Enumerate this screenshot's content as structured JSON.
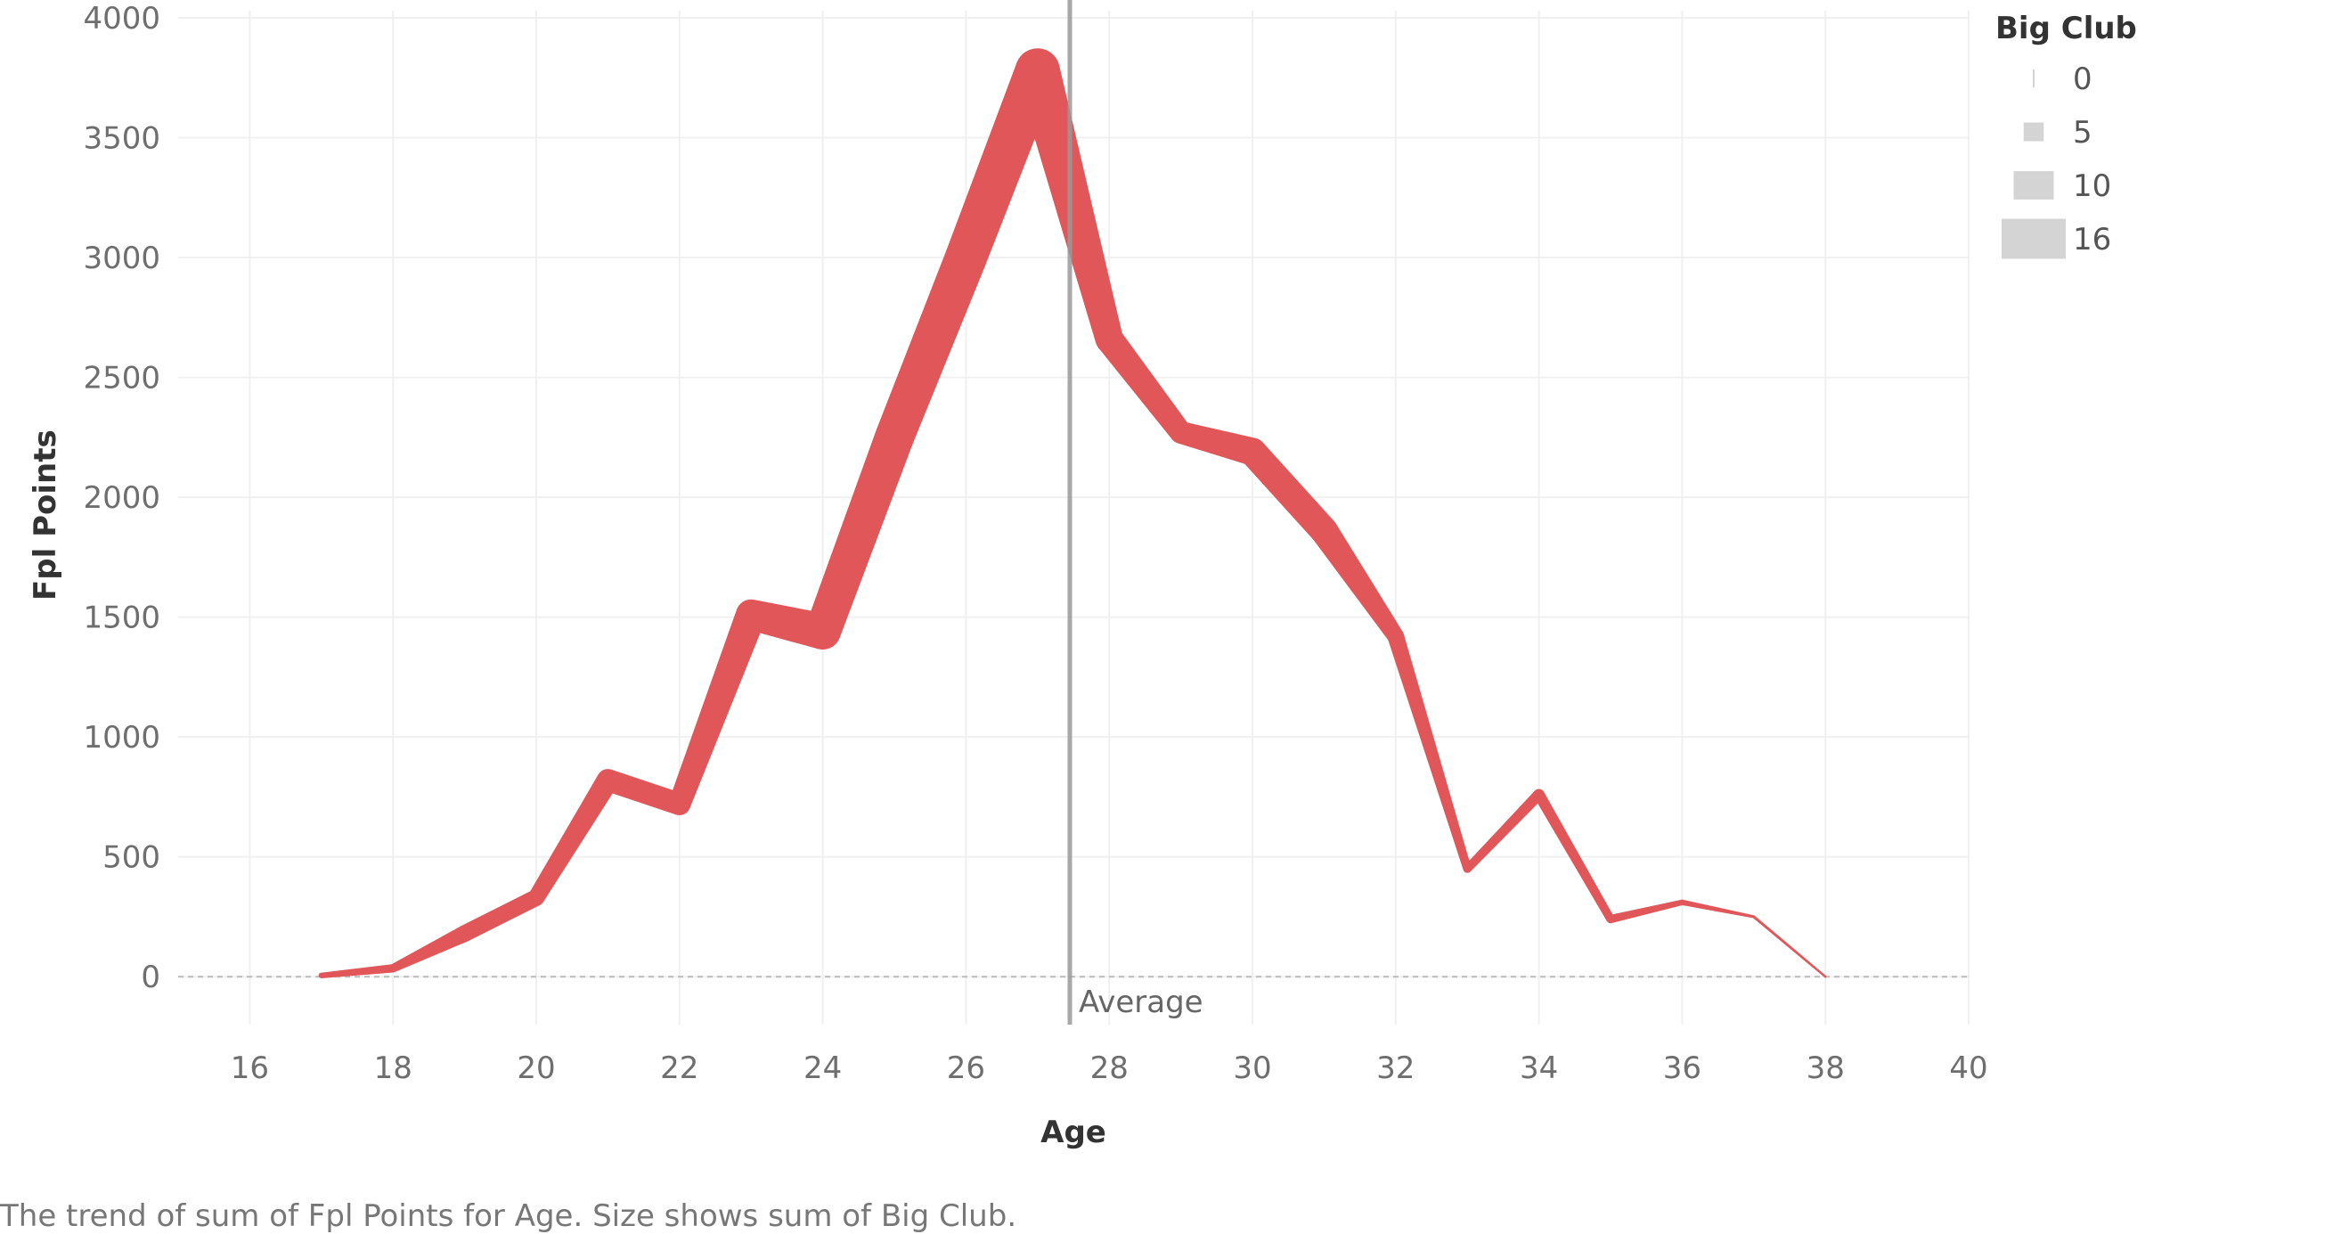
{
  "chart_data": {
    "type": "line",
    "xlabel": "Age",
    "ylabel": "Fpl Points",
    "xlim": [
      15,
      40
    ],
    "ylim": [
      -200,
      4000
    ],
    "xticks": [
      16,
      18,
      20,
      22,
      24,
      26,
      28,
      30,
      32,
      34,
      36,
      38,
      40
    ],
    "yticks": [
      0,
      500,
      1000,
      1500,
      2000,
      2500,
      3000,
      3500,
      4000
    ],
    "grid": true,
    "series": [
      {
        "x": [
          17,
          18,
          19,
          20,
          21,
          22,
          23,
          24,
          25,
          26,
          27,
          28,
          29,
          30,
          31,
          32,
          33,
          34,
          35,
          36,
          37,
          38
        ],
        "y": [
          5,
          35,
          180,
          330,
          820,
          720,
          1510,
          1440,
          2250,
          3000,
          3780,
          2660,
          2270,
          2190,
          1860,
          1420,
          450,
          760,
          240,
          310,
          250,
          0
        ],
        "size": [
          2,
          3,
          6,
          6,
          8,
          8,
          11,
          13,
          14,
          15,
          16,
          10,
          8,
          10,
          10,
          6,
          3,
          4,
          3,
          2,
          1,
          0
        ],
        "color": "#e15759"
      }
    ],
    "size_legend": {
      "title": "Big Club",
      "entries": [
        "0",
        "5",
        "10",
        "16"
      ]
    },
    "reference_line": {
      "label": "Average",
      "x": 27.45,
      "color": "#999999"
    },
    "zero_line_color": "#bbbbbb",
    "grid_color": "#f0f0f0"
  },
  "caption": "The trend of sum of Fpl Points for Age.  Size shows sum of Big Club."
}
